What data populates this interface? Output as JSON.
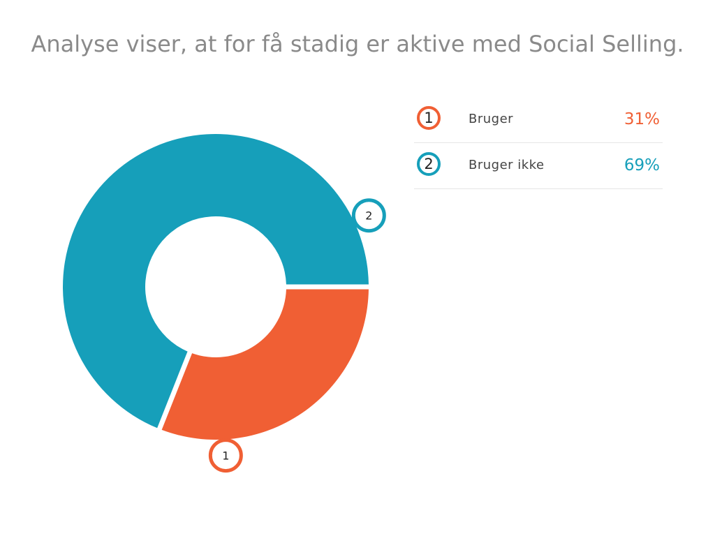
{
  "chart_data": {
    "type": "pie",
    "title": "Analyse viser, at for få stadig er aktive med Social Selling.",
    "categories": [
      "Bruger",
      "Bruger ikke"
    ],
    "values": [
      31,
      69
    ],
    "value_labels": [
      "31%",
      "69%"
    ],
    "markers": [
      "1",
      "2"
    ],
    "colors": [
      "#f05f34",
      "#169fba"
    ],
    "legend_position": "right"
  }
}
